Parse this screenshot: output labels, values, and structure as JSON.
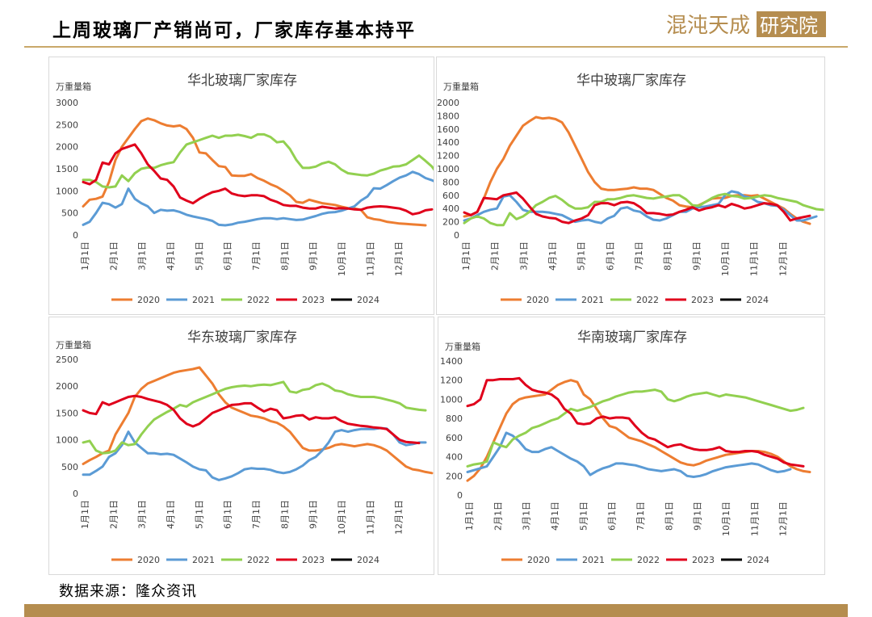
{
  "page": {
    "title": "上周玻璃厂产销尚可，厂家库存基本持平",
    "source": "数据来源：隆众资讯",
    "logo_text_a": "混沌天成",
    "logo_text_b": "研究院"
  },
  "colors": {
    "2020": "#ed7d31",
    "2021": "#5b9bd5",
    "2022": "#92d050",
    "2023": "#e0001b",
    "2024": "#000000",
    "accent": "#b58d4f"
  },
  "chart_data": [
    {
      "type": "line",
      "title": "华北玻璃厂家库存",
      "unit": "万重量箱",
      "ylim": [
        0,
        3000
      ],
      "yticks": [
        0,
        500,
        1000,
        1500,
        2000,
        2500,
        3000
      ],
      "xticks": [
        "1月1日",
        "2月1日",
        "3月1日",
        "4月1日",
        "5月1日",
        "6月1日",
        "7月1日",
        "8月1日",
        "9月1日",
        "10月1日",
        "11月1日",
        "12月1日"
      ],
      "legend": "bottom",
      "series": [
        {
          "name": "2020",
          "values": [
            650,
            800,
            820,
            870,
            1200,
            1700,
            2000,
            2200,
            2400,
            2580,
            2640,
            2600,
            2530,
            2480,
            2460,
            2480,
            2400,
            2200,
            1870,
            1850,
            1700,
            1560,
            1540,
            1350,
            1340,
            1340,
            1380,
            1290,
            1230,
            1150,
            1090,
            1000,
            900,
            750,
            730,
            800,
            760,
            720,
            700,
            680,
            640,
            610,
            600,
            570,
            400,
            360,
            340,
            300,
            280,
            260,
            250,
            240,
            230,
            220
          ]
        },
        {
          "name": "2021",
          "values": [
            230,
            300,
            500,
            730,
            700,
            620,
            700,
            1050,
            820,
            720,
            650,
            500,
            570,
            550,
            560,
            520,
            460,
            420,
            390,
            360,
            320,
            230,
            220,
            240,
            280,
            300,
            330,
            360,
            380,
            380,
            360,
            380,
            360,
            340,
            350,
            390,
            430,
            480,
            510,
            520,
            550,
            600,
            650,
            780,
            870,
            1060,
            1050,
            1130,
            1220,
            1300,
            1350,
            1430,
            1380,
            1290,
            1240,
            1170,
            1130,
            1100,
            1140,
            1200
          ]
        },
        {
          "name": "2022",
          "values": [
            1250,
            1250,
            1200,
            1100,
            1080,
            1100,
            1350,
            1220,
            1400,
            1500,
            1530,
            1520,
            1580,
            1620,
            1650,
            1870,
            2050,
            2100,
            2150,
            2200,
            2250,
            2200,
            2250,
            2250,
            2270,
            2240,
            2200,
            2280,
            2280,
            2220,
            2100,
            2120,
            1950,
            1700,
            1520,
            1520,
            1550,
            1620,
            1660,
            1600,
            1480,
            1400,
            1380,
            1360,
            1350,
            1390,
            1460,
            1500,
            1550,
            1560,
            1600,
            1700,
            1800,
            1680,
            1550,
            1350
          ]
        },
        {
          "name": "2023",
          "values": [
            1200,
            1150,
            1250,
            1640,
            1600,
            1850,
            1950,
            2000,
            2050,
            1850,
            1600,
            1450,
            1280,
            1250,
            1100,
            850,
            780,
            720,
            820,
            900,
            970,
            1000,
            1050,
            940,
            900,
            880,
            900,
            900,
            880,
            800,
            750,
            680,
            660,
            660,
            620,
            600,
            600,
            640,
            620,
            600,
            610,
            600,
            580,
            570,
            620,
            640,
            650,
            640,
            620,
            600,
            550,
            470,
            500,
            560,
            580
          ]
        },
        {
          "name": "2024",
          "values": []
        }
      ]
    },
    {
      "type": "line",
      "title": "华中玻璃厂家库存",
      "unit": "万重量箱",
      "ylim": [
        0,
        2000
      ],
      "yticks": [
        0,
        200,
        400,
        600,
        800,
        1000,
        1200,
        1400,
        1600,
        1800,
        2000
      ],
      "xticks": [
        "1月1日",
        "2月1日",
        "3月1日",
        "4月1日",
        "5月1日",
        "6月1日",
        "7月1日",
        "8月1日",
        "9月1日",
        "10月1日",
        "11月1日",
        "12月1日"
      ],
      "legend": "bottom",
      "series": [
        {
          "name": "2020",
          "values": [
            280,
            300,
            350,
            550,
            800,
            1000,
            1150,
            1350,
            1500,
            1650,
            1720,
            1780,
            1760,
            1770,
            1750,
            1700,
            1550,
            1350,
            1150,
            950,
            800,
            700,
            680,
            680,
            690,
            700,
            720,
            700,
            700,
            680,
            620,
            560,
            520,
            450,
            430,
            420,
            450,
            500,
            550,
            560,
            560,
            590,
            600,
            600,
            590,
            600,
            550,
            500,
            450,
            400,
            320,
            250,
            200,
            170
          ]
        },
        {
          "name": "2021",
          "values": [
            220,
            250,
            300,
            350,
            380,
            400,
            580,
            600,
            500,
            380,
            350,
            350,
            350,
            340,
            320,
            300,
            250,
            200,
            220,
            230,
            200,
            180,
            250,
            290,
            400,
            420,
            370,
            350,
            280,
            230,
            220,
            250,
            300,
            350,
            350,
            400,
            420,
            430,
            450,
            470,
            600,
            660,
            640,
            580,
            560,
            500,
            480,
            450,
            440,
            380,
            300,
            220,
            220,
            250,
            280
          ]
        },
        {
          "name": "2022",
          "values": [
            180,
            250,
            280,
            250,
            180,
            150,
            150,
            330,
            240,
            280,
            350,
            450,
            500,
            560,
            590,
            530,
            450,
            400,
            400,
            420,
            500,
            500,
            540,
            540,
            560,
            590,
            600,
            580,
            560,
            550,
            570,
            580,
            600,
            600,
            540,
            450,
            440,
            500,
            560,
            600,
            620,
            590,
            580,
            550,
            560,
            580,
            600,
            590,
            560,
            540,
            520,
            500,
            450,
            420,
            390,
            380
          ]
        },
        {
          "name": "2023",
          "values": [
            340,
            300,
            350,
            560,
            550,
            540,
            600,
            620,
            640,
            550,
            430,
            320,
            280,
            260,
            250,
            200,
            180,
            220,
            250,
            300,
            450,
            480,
            480,
            450,
            490,
            500,
            480,
            420,
            330,
            330,
            320,
            300,
            310,
            350,
            380,
            420,
            370,
            400,
            420,
            450,
            420,
            470,
            440,
            400,
            420,
            450,
            480,
            470,
            450,
            350,
            220,
            250,
            270,
            290
          ]
        },
        {
          "name": "2024",
          "values": []
        }
      ]
    },
    {
      "type": "line",
      "title": "华东玻璃厂家库存",
      "unit": "万重量箱",
      "ylim": [
        0,
        2500
      ],
      "yticks": [
        0,
        500,
        1000,
        1500,
        2000,
        2500
      ],
      "xticks": [
        "1月1日",
        "2月1日",
        "3月1日",
        "4月1日",
        "5月1日",
        "6月1日",
        "7月1日",
        "8月1日",
        "9月1日",
        "10月1日",
        "11月1日",
        "12月1日"
      ],
      "legend": "bottom",
      "series": [
        {
          "name": "2020",
          "values": [
            550,
            620,
            680,
            750,
            800,
            1100,
            1300,
            1500,
            1800,
            1950,
            2050,
            2100,
            2150,
            2200,
            2250,
            2280,
            2300,
            2320,
            2350,
            2200,
            2050,
            1850,
            1700,
            1600,
            1550,
            1500,
            1450,
            1430,
            1400,
            1350,
            1320,
            1250,
            1150,
            1000,
            850,
            800,
            800,
            820,
            850,
            900,
            920,
            900,
            880,
            900,
            920,
            900,
            860,
            800,
            700,
            600,
            500,
            450,
            430,
            400,
            380
          ]
        },
        {
          "name": "2021",
          "values": [
            350,
            350,
            420,
            500,
            680,
            750,
            900,
            1150,
            950,
            850,
            750,
            750,
            730,
            740,
            720,
            650,
            580,
            500,
            450,
            430,
            300,
            250,
            280,
            320,
            380,
            450,
            470,
            460,
            460,
            440,
            400,
            380,
            400,
            450,
            520,
            620,
            680,
            800,
            950,
            1150,
            1180,
            1150,
            1180,
            1200,
            1200,
            1200,
            1220,
            1210,
            1100,
            950,
            900,
            920,
            950,
            950
          ]
        },
        {
          "name": "2022",
          "values": [
            950,
            980,
            800,
            750,
            760,
            800,
            950,
            900,
            920,
            1100,
            1250,
            1380,
            1450,
            1520,
            1580,
            1650,
            1620,
            1700,
            1750,
            1800,
            1850,
            1900,
            1950,
            1980,
            2000,
            2010,
            2000,
            2020,
            2030,
            2020,
            2050,
            2080,
            1900,
            1880,
            1930,
            1950,
            2020,
            2050,
            2000,
            1920,
            1900,
            1850,
            1820,
            1800,
            1800,
            1800,
            1780,
            1750,
            1720,
            1680,
            1600,
            1580,
            1560,
            1550
          ]
        },
        {
          "name": "2023",
          "values": [
            1550,
            1500,
            1480,
            1700,
            1650,
            1700,
            1750,
            1800,
            1820,
            1800,
            1760,
            1730,
            1700,
            1650,
            1560,
            1400,
            1300,
            1250,
            1300,
            1400,
            1500,
            1550,
            1600,
            1650,
            1660,
            1680,
            1680,
            1600,
            1530,
            1580,
            1550,
            1400,
            1420,
            1450,
            1460,
            1380,
            1420,
            1400,
            1400,
            1420,
            1350,
            1300,
            1280,
            1260,
            1250,
            1230,
            1220,
            1200,
            1100,
            1000,
            960,
            950,
            940
          ]
        },
        {
          "name": "2024",
          "values": []
        }
      ]
    },
    {
      "type": "line",
      "title": "华南玻璃厂家库存",
      "unit": "万重量箱",
      "ylim": [
        0,
        1400
      ],
      "yticks": [
        0,
        200,
        400,
        600,
        800,
        1000,
        1200,
        1400
      ],
      "xticks": [
        "1月1日",
        "2月1日",
        "3月1日",
        "4月1日",
        "5月1日",
        "6月1日",
        "7月1日",
        "8月1日",
        "9月1日",
        "10月1日",
        "11月1日",
        "12月1日"
      ],
      "legend": "bottom",
      "series": [
        {
          "name": "2020",
          "values": [
            150,
            200,
            280,
            400,
            550,
            700,
            850,
            950,
            1000,
            1020,
            1030,
            1040,
            1050,
            1100,
            1150,
            1180,
            1200,
            1180,
            1050,
            1000,
            900,
            800,
            720,
            700,
            650,
            600,
            580,
            560,
            530,
            500,
            460,
            420,
            380,
            340,
            320,
            310,
            330,
            360,
            380,
            400,
            420,
            430,
            440,
            450,
            460,
            460,
            450,
            430,
            400,
            350,
            300,
            270,
            250,
            240
          ]
        },
        {
          "name": "2021",
          "values": [
            240,
            260,
            280,
            300,
            400,
            500,
            650,
            620,
            560,
            480,
            450,
            450,
            480,
            500,
            460,
            420,
            380,
            350,
            300,
            210,
            250,
            280,
            300,
            330,
            330,
            320,
            310,
            290,
            270,
            260,
            250,
            260,
            270,
            250,
            200,
            190,
            200,
            220,
            250,
            270,
            290,
            300,
            310,
            320,
            330,
            320,
            290,
            260,
            240,
            250,
            270
          ]
        },
        {
          "name": "2022",
          "values": [
            300,
            320,
            330,
            350,
            550,
            520,
            500,
            580,
            620,
            650,
            700,
            720,
            750,
            780,
            800,
            850,
            900,
            880,
            900,
            920,
            950,
            980,
            1000,
            1030,
            1050,
            1070,
            1080,
            1080,
            1090,
            1100,
            1080,
            1000,
            980,
            1000,
            1030,
            1050,
            1060,
            1070,
            1050,
            1030,
            1050,
            1040,
            1030,
            1020,
            1000,
            980,
            960,
            940,
            920,
            900,
            880,
            890,
            910
          ]
        },
        {
          "name": "2023",
          "values": [
            930,
            950,
            1000,
            1200,
            1200,
            1210,
            1210,
            1210,
            1220,
            1150,
            1100,
            1080,
            1070,
            1050,
            1000,
            900,
            850,
            750,
            740,
            750,
            800,
            820,
            800,
            810,
            810,
            800,
            720,
            650,
            600,
            580,
            540,
            500,
            520,
            530,
            500,
            480,
            470,
            470,
            480,
            500,
            460,
            450,
            450,
            460,
            460,
            450,
            420,
            400,
            380,
            340,
            320,
            310,
            300
          ]
        },
        {
          "name": "2024",
          "values": []
        }
      ]
    }
  ]
}
